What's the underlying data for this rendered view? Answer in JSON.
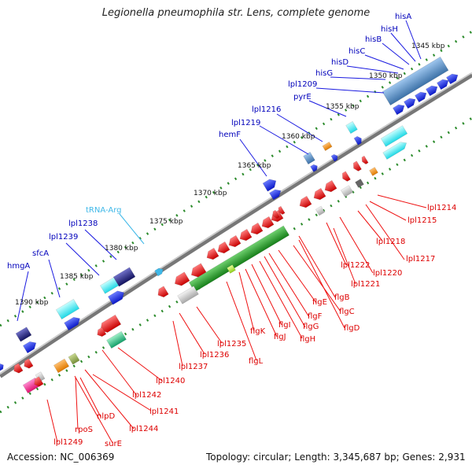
{
  "title": "Legionella pneumophila str. Lens, complete genome",
  "footer": {
    "accession": "Accession: NC_006369",
    "topology": "Topology: circular; Length: 3,345,687 bp; Genes: 2,931"
  },
  "colors": {
    "backbone": "#777777",
    "tick": "#2a8a2a",
    "fwd_label": "#0000bb",
    "rev_label": "#dd0000",
    "rna_label": "#3fb8e8",
    "cds_fwd": "#1a2ee6",
    "cds_rev": "#ee1111",
    "flg_operon": "#2a9a2a"
  },
  "scale_labels": [
    "1345 kbp",
    "1350 kbp",
    "1355 kbp",
    "1360 kbp",
    "1365 kbp",
    "1370 kbp",
    "1375 kbp",
    "1380 kbp",
    "1385 kbp",
    "1390 kbp"
  ],
  "forward_genes": [
    "hisA",
    "hisH",
    "hisB",
    "hisC",
    "hisD",
    "hisG",
    "lpl1209",
    "pyrE",
    "lpl1216",
    "lpl1219",
    "hemF",
    "lpl1238",
    "lpl1239",
    "sfcA",
    "hmgA"
  ],
  "rna_genes": [
    "tRNA-Arg"
  ],
  "reverse_genes": [
    "lpl1214",
    "lpl1215",
    "lpl1218",
    "lpl1217",
    "lpl1222",
    "lpl1220",
    "lpl1221",
    "flgB",
    "flgC",
    "flgD",
    "flgE",
    "flgF",
    "flgG",
    "flgH",
    "flgI",
    "flgJ",
    "flgK",
    "flgL",
    "lpl1235",
    "lpl1236",
    "lpl1237",
    "lpl1240",
    "lpl1242",
    "lpl1241",
    "lpl1244",
    "nlpD",
    "surE",
    "rpoS",
    "lpl1249"
  ]
}
